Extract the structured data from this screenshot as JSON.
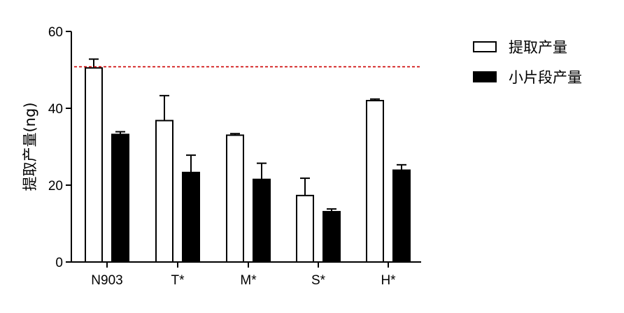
{
  "chart_data": {
    "type": "bar",
    "title": "",
    "xlabel": "",
    "ylabel": "提取产量(ng)",
    "ylim": [
      0,
      60
    ],
    "yticks": [
      0,
      20,
      40,
      60
    ],
    "grid": false,
    "legend_position": "top-right",
    "categories": [
      "N903",
      "T*",
      "M*",
      "S*",
      "H*"
    ],
    "series": [
      {
        "name": "提取产量",
        "color": "#ffffff",
        "stroke": "#000000",
        "values": [
          50.5,
          36.8,
          33.0,
          17.3,
          42.0
        ],
        "error": [
          2.3,
          6.5,
          0.4,
          4.5,
          0.4
        ]
      },
      {
        "name": "小片段产量",
        "color": "#000000",
        "stroke": "#000000",
        "values": [
          33.2,
          23.3,
          21.5,
          13.1,
          23.9
        ],
        "error": [
          0.7,
          4.5,
          4.2,
          0.7,
          1.4
        ]
      }
    ],
    "reference_line": {
      "y": 50.8,
      "color": "#cc0000",
      "style": "dashed"
    }
  }
}
